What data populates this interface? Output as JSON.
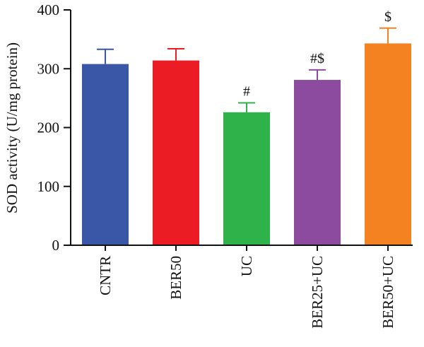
{
  "chart_data": {
    "type": "bar",
    "ylabel": "SOD activity (U/mg protein)",
    "ylim": [
      0,
      400
    ],
    "yticks": [
      0,
      100,
      200,
      300,
      400
    ],
    "categories": [
      "CNTR",
      "BER50",
      "UC",
      "BER25+UC",
      "BER50+UC"
    ],
    "values": [
      308,
      314,
      226,
      281,
      343
    ],
    "errors": [
      25,
      20,
      16,
      17,
      26
    ],
    "annotations": [
      "",
      "",
      "#",
      "#$",
      "$"
    ],
    "colors": [
      "#3a56a6",
      "#ec1c24",
      "#2fb24a",
      "#8c4b9f",
      "#f58220"
    ],
    "grid": false
  }
}
